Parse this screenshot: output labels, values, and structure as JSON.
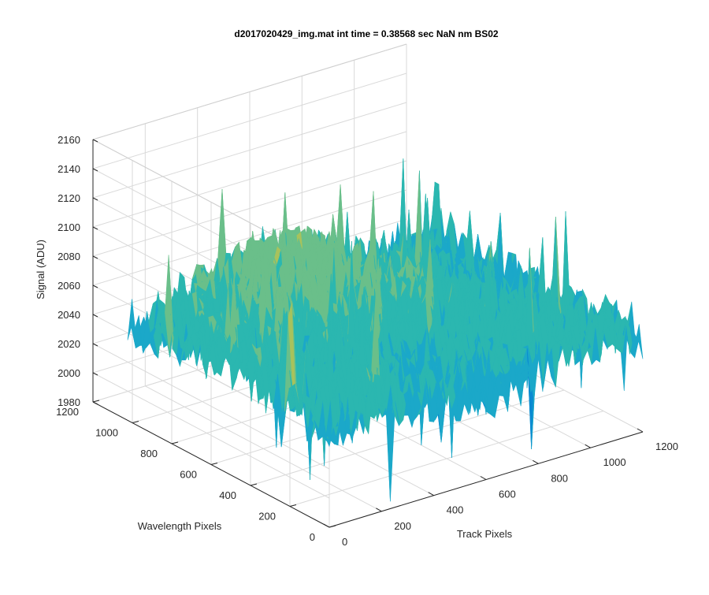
{
  "chart_data": {
    "type": "surface",
    "title": "d2017020429_img.mat int time = 0.38568 sec  NaN nm BS02",
    "xlabel": "Track Pixels",
    "ylabel": "Wavelength Pixels",
    "zlabel": "Signal (ADU)",
    "xlim": [
      0,
      1200
    ],
    "ylim": [
      0,
      1200
    ],
    "zlim": [
      1980,
      2160
    ],
    "xticks": [
      "0",
      "200",
      "400",
      "600",
      "800",
      "1000",
      "1200"
    ],
    "yticks": [
      "0",
      "200",
      "400",
      "600",
      "800",
      "1000",
      "1200"
    ],
    "zticks": [
      "1980",
      "2000",
      "2020",
      "2040",
      "2060",
      "2080",
      "2100",
      "2120",
      "2140",
      "2160"
    ],
    "grid": true,
    "box": true,
    "surface_extent": {
      "x": [
        0,
        1200
      ],
      "y": [
        0,
        1024
      ]
    },
    "signal_range": [
      1985,
      2145
    ],
    "signal_typical": 2045,
    "colormap": [
      "#0072bd",
      "#0a8ad2",
      "#1ba8c9",
      "#2bb7b0",
      "#6abf8a",
      "#a8c25c",
      "#dcc03a",
      "#f2cf3a"
    ],
    "colors": {
      "axis": "#262626",
      "grid": "#d9d9d9",
      "background": "#ffffff"
    }
  }
}
